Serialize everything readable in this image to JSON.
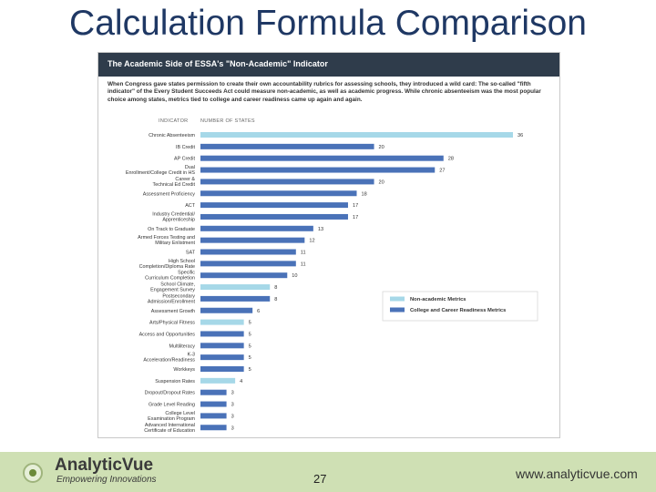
{
  "slide": {
    "title": "Calculation Formula Comparison",
    "page_number": "27",
    "brand_name": "AnalyticVue",
    "brand_tagline": "Empowering Innovations",
    "website": "www.analyticvue.com"
  },
  "chart_data": {
    "type": "bar",
    "orientation": "horizontal",
    "title": "The Academic Side of ESSA's \"Non-Academic\" Indicator",
    "description": "When Congress gave states permission to create their own accountability rubrics for assessing schools, they introduced a wild card: The so-called \"fifth indicator\" of the Every Student Succeeds Act could measure non-academic, as well as academic progress. While chronic absenteeism was the most popular choice among states, metrics tied to college and career readiness came up again and again.",
    "column_headers": [
      "INDICATOR",
      "NUMBER OF STATES"
    ],
    "categories": [
      "Chronic Absenteeism",
      "IB Credit",
      "AP Credit",
      "Dual Enrollment/College Credit in HS",
      "Career & Technical Ed Credit",
      "Assessment Proficiency",
      "ACT",
      "Industry Credential/ Apprenticeship",
      "On Track to Graduate",
      "Armed Forces Testing and Military Enlistment",
      "SAT",
      "High School Completion/Diploma Rate",
      "Specific Curriculum Completion",
      "School Climate, Engagement Survey",
      "Postsecondary Admission/Enrollment",
      "Assessment Growth",
      "Arts/Physical Fitness",
      "Access and Opportunities",
      "Multiliteracy",
      "K-3 Acceleration/Readiness",
      "Workkeys",
      "Suspension Rates",
      "Dropout/Dropout Rates",
      "Grade Level Reading",
      "College Level Examination Program",
      "Advanced International Certificate of Education"
    ],
    "values": [
      36,
      20,
      28,
      27,
      20,
      18,
      17,
      17,
      13,
      12,
      11,
      11,
      10,
      8,
      8,
      6,
      5,
      5,
      5,
      5,
      5,
      4,
      3,
      3,
      3,
      3
    ],
    "value_labels": [
      "36",
      "20",
      "28",
      "27",
      "20",
      "18",
      "17",
      "17",
      "13",
      "12",
      "11",
      "11",
      "10",
      "8",
      "8",
      "6",
      "5",
      "5",
      "5",
      "5",
      "5",
      "4",
      "3",
      "3",
      "3",
      "3"
    ],
    "metric_type": [
      "non",
      "col",
      "col",
      "col",
      "col",
      "col",
      "col",
      "col",
      "col",
      "col",
      "col",
      "col",
      "col",
      "non",
      "col",
      "col",
      "non",
      "col",
      "col",
      "col",
      "col",
      "non",
      "col",
      "col",
      "col",
      "col"
    ],
    "xlim": [
      0,
      36
    ],
    "legend": {
      "placement": "right",
      "entries": [
        {
          "key": "non",
          "label": "Non-academic Metrics",
          "color": "#a6d8e8"
        },
        {
          "key": "col",
          "label": "College and Career Readiness Metrics",
          "color": "#4a72b8"
        }
      ]
    },
    "grid": false
  }
}
